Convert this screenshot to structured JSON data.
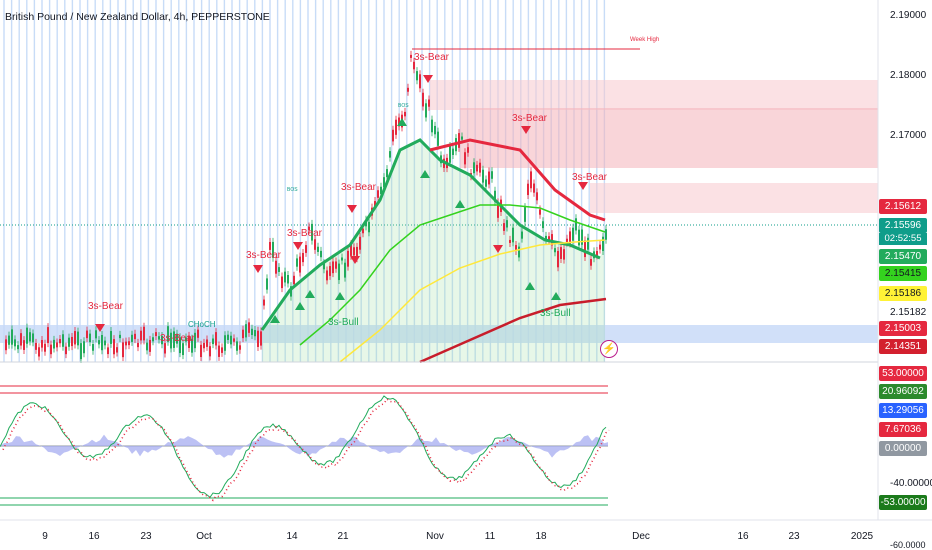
{
  "symbol_title": "British Pound / New Zealand Dollar, 4h, PEPPERSTONE",
  "price_axis_ticks": [
    "2.19000",
    "2.18000",
    "2.17000",
    "2.15182",
    "-40.00000",
    "-60.0000"
  ],
  "price_tags": [
    {
      "label": "2.15612",
      "color": "#e5283f"
    },
    {
      "label": "2.15596",
      "color": "#0f9d8a"
    },
    {
      "label": "2.15470",
      "color": "#22ab5c"
    },
    {
      "label": "2.15415",
      "color": "#34d21e"
    },
    {
      "label": "2.15186",
      "color": "#fff236"
    },
    {
      "label": "2.15003",
      "color": "#e5283f"
    },
    {
      "label": "2.14351",
      "color": "#d3202e"
    }
  ],
  "countdown": "02:52:55",
  "osc_tags": [
    {
      "label": "53.00000",
      "color": "#e5283f"
    },
    {
      "label": "20.96092",
      "color": "#2c8a2c"
    },
    {
      "label": "13.29056",
      "color": "#2962ff"
    },
    {
      "label": "7.67036",
      "color": "#e5283f"
    },
    {
      "label": "0.00000",
      "color": "#9098a1"
    },
    {
      "label": "-53.00000",
      "color": "#1b7a1b"
    }
  ],
  "time_axis_ticks": [
    "9",
    "16",
    "23",
    "Oct",
    "14",
    "21",
    "Nov",
    "11",
    "18",
    "Dec",
    "16",
    "23",
    "2025"
  ],
  "annotations": {
    "week_high": "Week High",
    "choch": "CHoCH",
    "bos": "BOS",
    "bear": "3s-Bear",
    "bull": "3s-Bull"
  },
  "icons": {
    "alert": "lightning-icon"
  }
}
